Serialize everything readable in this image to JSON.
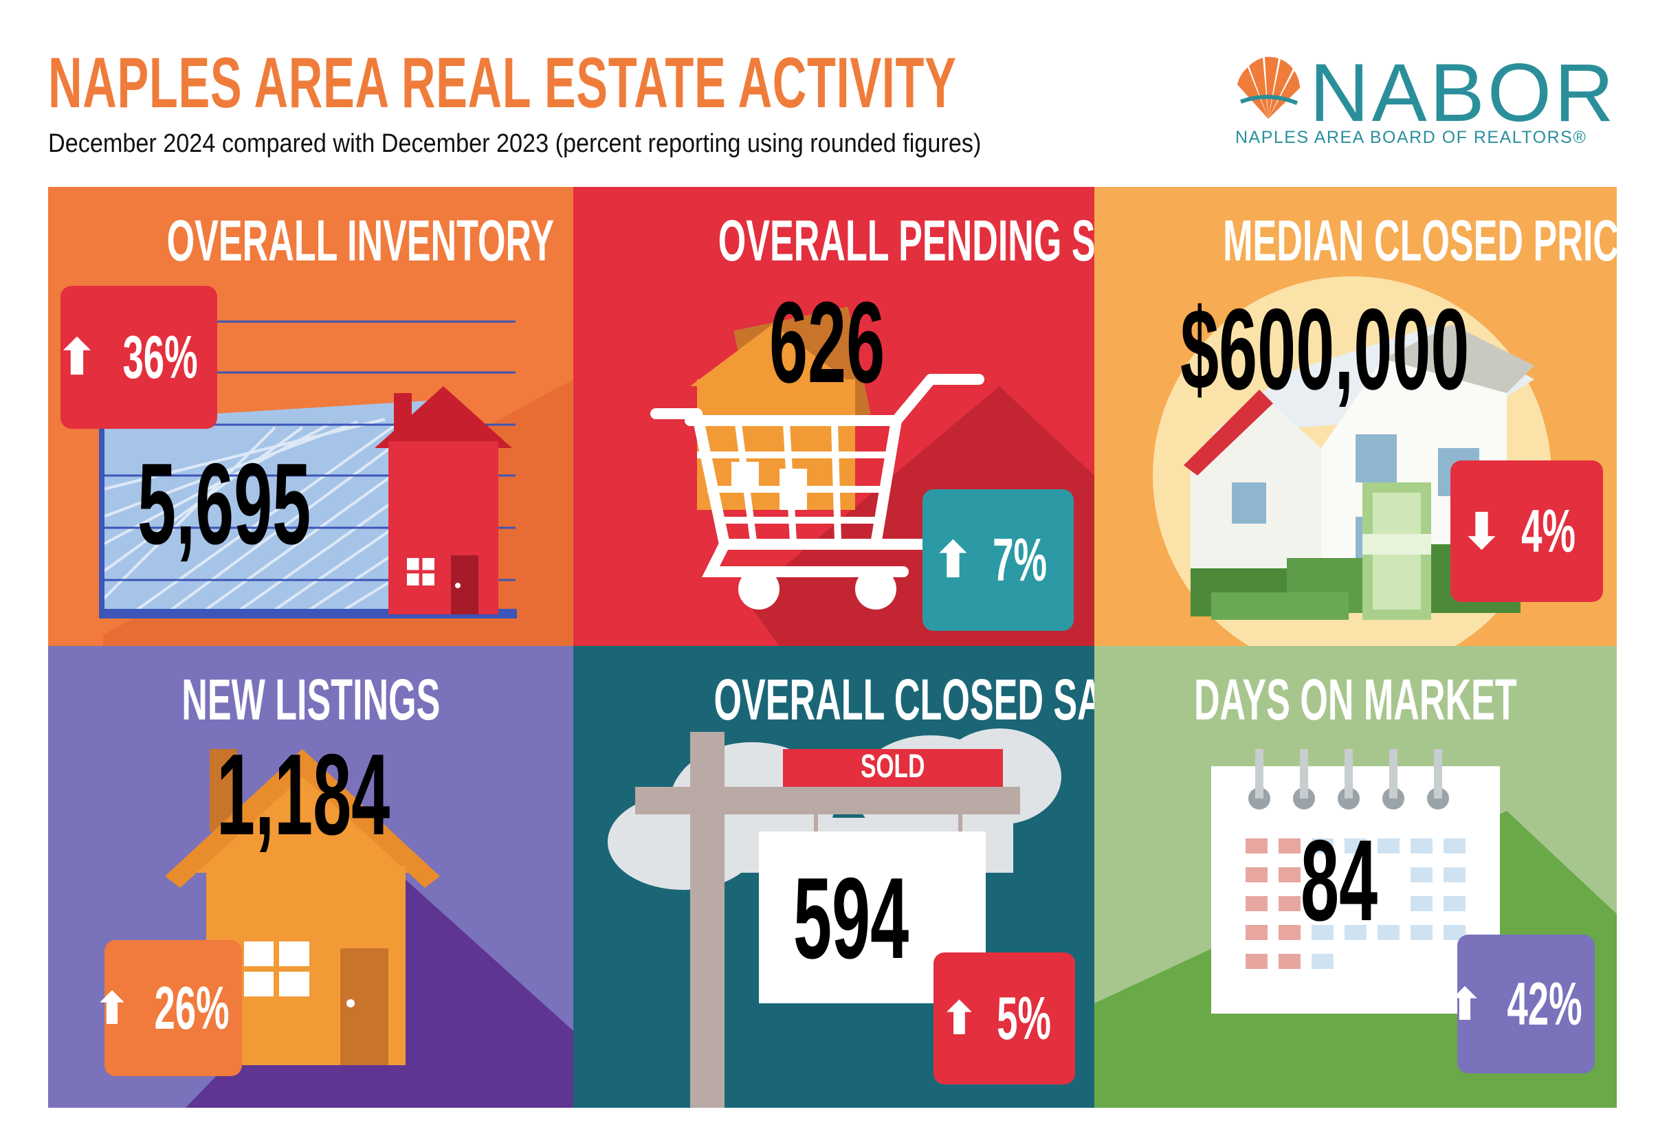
{
  "header": {
    "title": "NAPLES AREA REAL ESTATE ACTIVITY",
    "subtitle": "December 2024 compared with December 2023 (percent reporting using rounded figures)"
  },
  "logo": {
    "name": "NABOR",
    "tagline": "NAPLES AREA BOARD OF REALTORS®",
    "icon": "shell-icon",
    "colors": {
      "text": "#2a8f9a",
      "shell": "#ef7c3a"
    }
  },
  "panels": {
    "inventory": {
      "title": "OVERALL INVENTORY",
      "value": "5,695",
      "change": "36%",
      "direction": "up",
      "icon": "house-chart-illustration",
      "bg": "#f07b3d"
    },
    "pending": {
      "title": "OVERALL PENDING SALES",
      "value": "626",
      "change": "7%",
      "direction": "up",
      "icon": "shopping-cart-house-illustration",
      "bg": "#e32f3e"
    },
    "median_price": {
      "title": "MEDIAN CLOSED PRICE",
      "value": "$600,000",
      "change": "4%",
      "direction": "down",
      "icon": "house-money-illustration",
      "bg": "#f7ab52"
    },
    "new_listings": {
      "title": "NEW LISTINGS",
      "value": "1,184",
      "change": "26%",
      "direction": "up",
      "icon": "house-illustration",
      "bg": "#7a72bb"
    },
    "closed_sales": {
      "title": "OVERALL CLOSED SALES",
      "value": "594",
      "change": "5%",
      "direction": "up",
      "sign_label": "SOLD",
      "icon": "sold-sign-illustration",
      "bg": "#1a6676"
    },
    "days_on_market": {
      "title": "DAYS ON MARKET",
      "value": "84",
      "change": "42%",
      "direction": "up",
      "icon": "calendar-illustration",
      "bg": "#a7c68e"
    }
  }
}
